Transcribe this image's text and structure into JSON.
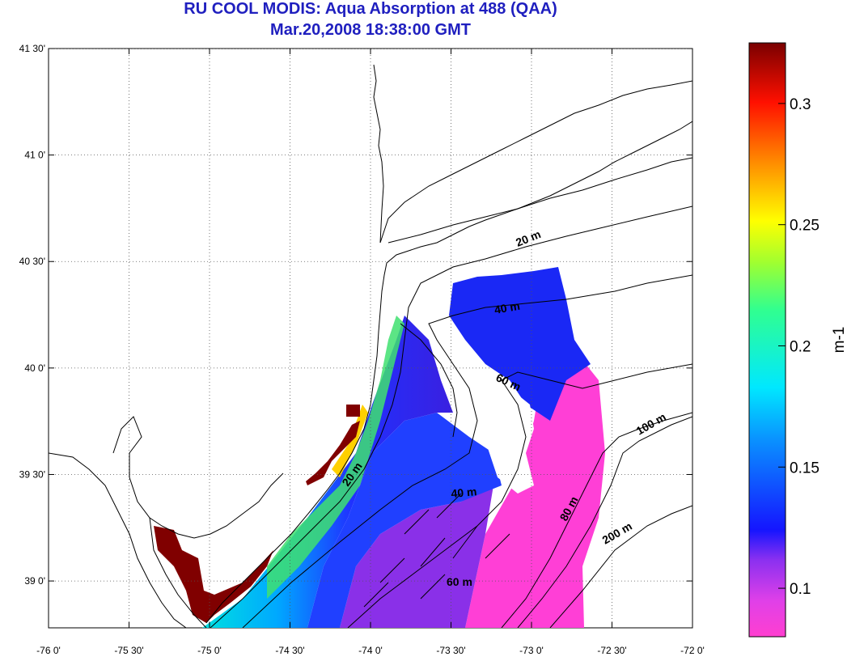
{
  "map": {
    "title_line1": "RU COOL MODIS: Aqua Absorption at 488 (QAA)",
    "title_line2": "Mar.20,2008 18:38:00 GMT",
    "lon_labels": [
      "-76 0'",
      "-75 30'",
      "-75 0'",
      "-74 30'",
      "-74 0'",
      "-73 30'",
      "-73 0'",
      "-72 30'",
      "-72 0'"
    ],
    "lat_labels": [
      "41 30'",
      "41 0'",
      "40 30'",
      "40 0'",
      "39 30'",
      "39 0'"
    ],
    "lon_range": [
      -76.0,
      -72.0
    ],
    "lat_range": [
      38.78,
      41.5
    ],
    "grid": true,
    "contour_labels": [
      "20 m",
      "40 m",
      "60 m",
      "100 m",
      "20 m",
      "40 m",
      "80 m",
      "200 m",
      "60 m"
    ],
    "colorbar": {
      "unit": "m-1",
      "tick_labels": [
        "0.3",
        "0.25",
        "0.2",
        "0.15",
        "0.1"
      ],
      "range": [
        0.08,
        0.325
      ],
      "colors": [
        "#ff3fd0",
        "#a020f0",
        "#2020ff",
        "#00c0ff",
        "#00ffd0",
        "#40ff40",
        "#ffff00",
        "#ff8000",
        "#ff0000",
        "#800000"
      ]
    }
  }
}
